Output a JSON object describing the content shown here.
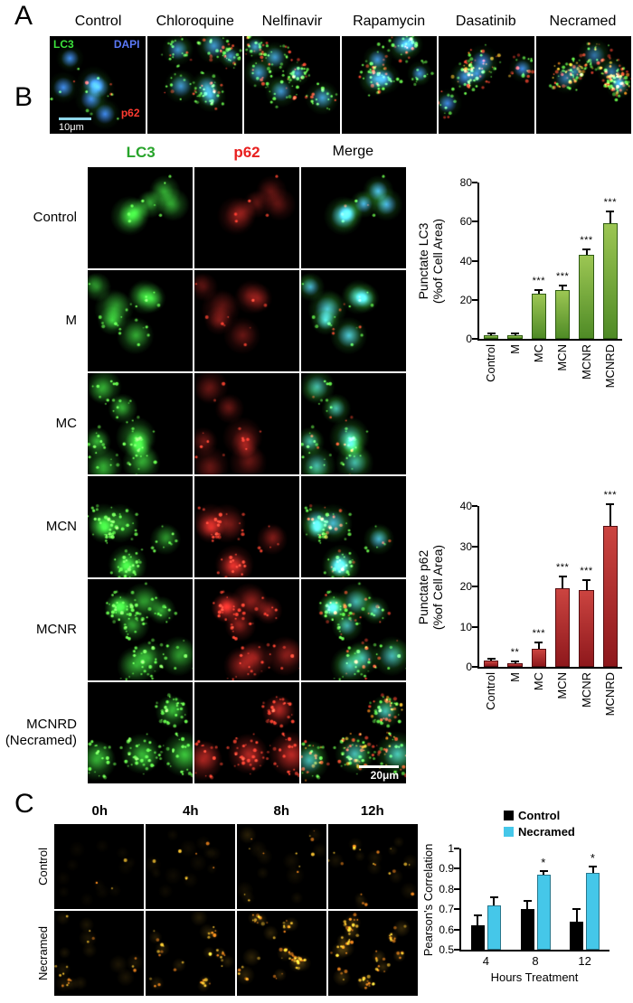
{
  "panels": {
    "a": "A",
    "b": "B",
    "c": "C"
  },
  "panelA": {
    "columns": [
      "Control",
      "Chloroquine",
      "Nelfinavir",
      "Rapamycin",
      "Dasatinib",
      "Necramed"
    ],
    "overlays": {
      "lc3": {
        "label": "LC3",
        "color": "#3ce23c"
      },
      "dapi": {
        "label": "DAPI",
        "color": "#5b79f7"
      },
      "p62": {
        "label": "p62",
        "color": "#ff3b30"
      },
      "scale": {
        "label": "10μm",
        "color": "#ffffff",
        "bar_color": "#8fd6e8"
      }
    }
  },
  "panelB": {
    "col_headers": [
      {
        "label": "LC3",
        "color": "#28a42b"
      },
      {
        "label": "p62",
        "color": "#e8201f"
      },
      {
        "label": "Merge",
        "color": "#000000"
      }
    ],
    "rows": [
      "Control",
      "M",
      "MC",
      "MCN",
      "MCNR",
      "MCNRD"
    ],
    "row_sub": "(Necramed)",
    "scale": {
      "label": "20μm",
      "color": "#ffffff",
      "bar_color": "#ffffff"
    }
  },
  "panelC": {
    "columns": [
      "0h",
      "4h",
      "8h",
      "12h"
    ],
    "rows": [
      "Control",
      "Necramed"
    ]
  },
  "chart_data": [
    {
      "type": "bar",
      "ylabel": "Punctate LC3 (%of Cell Area)",
      "ylabel_lines": [
        "Punctate LC3",
        "(%of Cell Area)"
      ],
      "categories": [
        "Control",
        "M",
        "MC",
        "MCN",
        "MCNR",
        "MCNRD"
      ],
      "values": [
        2,
        2,
        23,
        25,
        43,
        59
      ],
      "errors": [
        0.6,
        0.6,
        2,
        2.5,
        3,
        6
      ],
      "significance": [
        "",
        "",
        "***",
        "***",
        "***",
        "***"
      ],
      "ylim": [
        0,
        80
      ],
      "yticks": [
        0,
        20,
        40,
        60,
        80
      ],
      "bar_colors": [
        "#9cc653",
        "#4f8b26",
        "#2f5b13"
      ],
      "grid": false,
      "legend_position": "none"
    },
    {
      "type": "bar",
      "ylabel": "Punctate p62 (%of Cell Area)",
      "ylabel_lines": [
        "Punctate p62",
        "(%of Cell Area)"
      ],
      "categories": [
        "Control",
        "M",
        "MC",
        "MCN",
        "MCNR",
        "MCNRD"
      ],
      "values": [
        1.5,
        1,
        4.5,
        19.5,
        19,
        35
      ],
      "errors": [
        0.5,
        0.4,
        1.5,
        3,
        2.5,
        5.5
      ],
      "significance": [
        "",
        "**",
        "***",
        "***",
        "***",
        "***"
      ],
      "ylim": [
        0,
        40
      ],
      "yticks": [
        0,
        10,
        20,
        30,
        40
      ],
      "bar_colors": [
        "#cb4440",
        "#8e181c",
        "#550d10"
      ],
      "grid": false,
      "legend_position": "none"
    },
    {
      "type": "grouped_bar",
      "ylabel": "Pearson's Correlation",
      "xlabel": "Hours Treatment",
      "categories": [
        "4",
        "8",
        "12"
      ],
      "series": [
        {
          "name": "Control",
          "color": "#000000",
          "values": [
            0.62,
            0.7,
            0.64
          ],
          "errors": [
            0.05,
            0.04,
            0.06
          ],
          "significance": [
            "",
            "",
            ""
          ]
        },
        {
          "name": "Necramed",
          "color": "#45c7e9",
          "values": [
            0.72,
            0.87,
            0.88
          ],
          "errors": [
            0.04,
            0.02,
            0.03
          ],
          "significance": [
            "",
            "*",
            "*"
          ]
        }
      ],
      "ylim": [
        0.5,
        1
      ],
      "yticks": [
        "0.5",
        "0.6",
        "0.7",
        "0.8",
        "0.9",
        "1"
      ],
      "grid": false,
      "legend_position": "top-right"
    }
  ]
}
